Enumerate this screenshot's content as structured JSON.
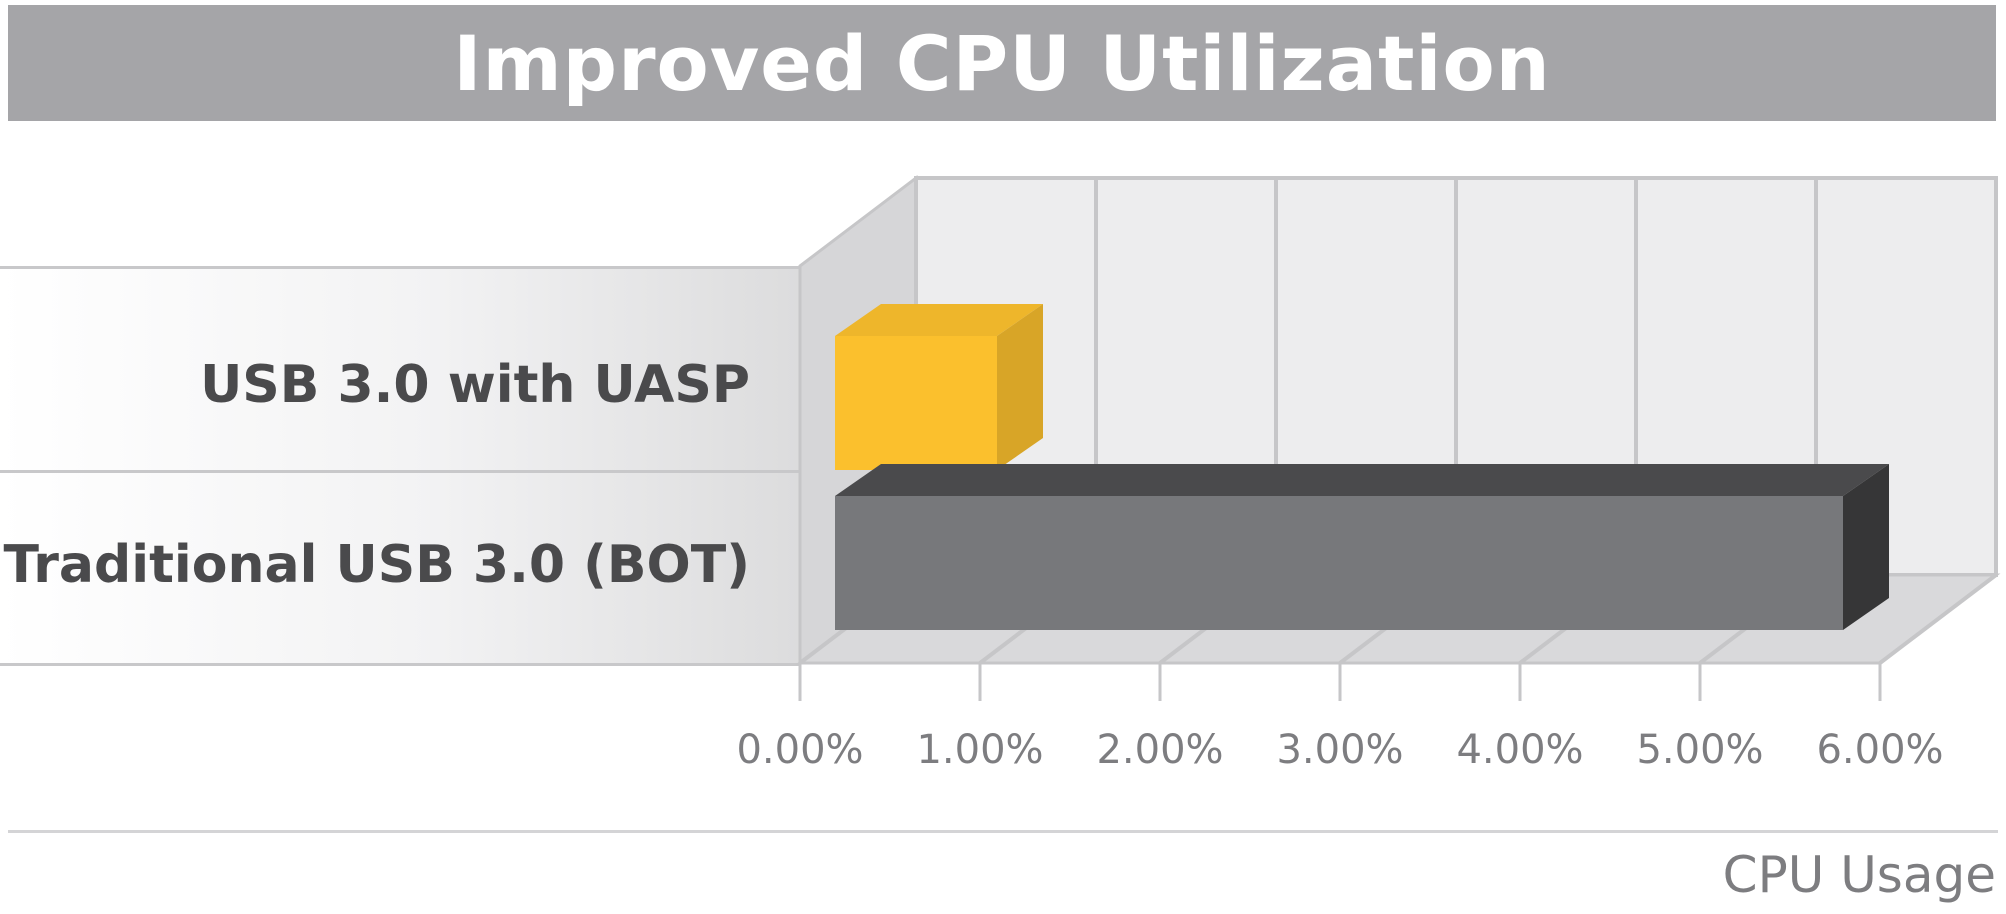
{
  "chart_data": {
    "type": "bar",
    "orientation": "horizontal",
    "title": "Improved CPU Utilization",
    "categories": [
      "USB 3.0 with UASP",
      "Traditional USB 3.0 (BOT)"
    ],
    "values": [
      1.15,
      5.85
    ],
    "xlabel": "CPU Usage",
    "ylabel": "",
    "xlim": [
      0,
      6
    ],
    "xticks": [
      "0.00%",
      "1.00%",
      "2.00%",
      "3.00%",
      "4.00%",
      "5.00%",
      "6.00%"
    ],
    "grid": true,
    "colors": [
      "#fbc02d",
      "#77787b"
    ]
  }
}
